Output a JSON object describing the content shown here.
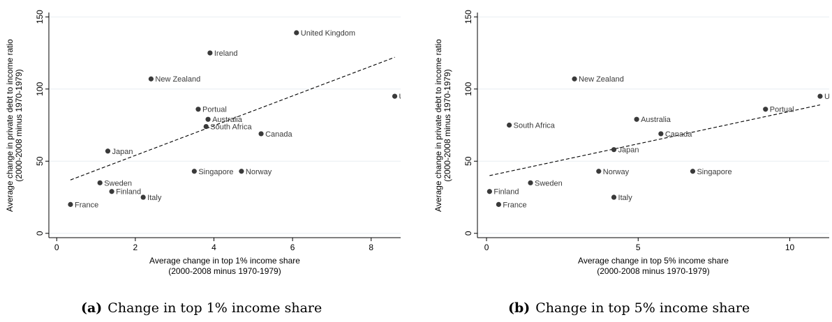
{
  "chart_data": [
    {
      "type": "scatter",
      "caption_tag": "(a)",
      "caption_text": "Change in top 1% income share",
      "xlabel": "Average change in top 1% income share",
      "xlabel2": "(2000-2008 minus 1970-1979)",
      "ylabel": "Average change in private debt to income ratio",
      "ylabel2": "(2000-2008 minus 1970-1979)",
      "xlim": [
        -0.2,
        8.75
      ],
      "ylim": [
        -3,
        153
      ],
      "xticks": [
        0,
        2,
        4,
        6,
        8
      ],
      "yticks": [
        0,
        50,
        100,
        150
      ],
      "grid": "horizontal",
      "fit_line": {
        "x": [
          0.35,
          8.6
        ],
        "y": [
          37,
          122
        ]
      },
      "points": [
        {
          "label": "United Kingdom",
          "x": 6.1,
          "y": 139
        },
        {
          "label": "Ireland",
          "x": 3.9,
          "y": 125
        },
        {
          "label": "New Zealand",
          "x": 2.4,
          "y": 107
        },
        {
          "label": "Unit",
          "x": 8.6,
          "y": 95
        },
        {
          "label": "Portual",
          "x": 3.6,
          "y": 86
        },
        {
          "label": "Australia",
          "x": 3.85,
          "y": 79
        },
        {
          "label": "South Africa",
          "x": 3.8,
          "y": 74
        },
        {
          "label": "Canada",
          "x": 5.2,
          "y": 69
        },
        {
          "label": "Japan",
          "x": 1.3,
          "y": 57
        },
        {
          "label": "Singapore",
          "x": 3.5,
          "y": 43
        },
        {
          "label": "Norway",
          "x": 4.7,
          "y": 43
        },
        {
          "label": "Sweden",
          "x": 1.1,
          "y": 35
        },
        {
          "label": "Finland",
          "x": 1.4,
          "y": 29
        },
        {
          "label": "Italy",
          "x": 2.2,
          "y": 25
        },
        {
          "label": "France",
          "x": 0.35,
          "y": 20
        }
      ]
    },
    {
      "type": "scatter",
      "caption_tag": "(b)",
      "caption_text": "Change in top 5% income share",
      "xlabel": "Average change in top 5% income share",
      "xlabel2": "(2000-2008 minus 1970-1979)",
      "ylabel": "Average change in private debt to income ratio",
      "ylabel2": "(2000-2008 minus 1970-1979)",
      "xlim": [
        -0.3,
        11.3
      ],
      "ylim": [
        -3,
        153
      ],
      "xticks": [
        0,
        5,
        10
      ],
      "yticks": [
        0,
        50,
        100,
        150
      ],
      "grid": "horizontal",
      "fit_line": {
        "x": [
          0.1,
          11.0
        ],
        "y": [
          40,
          89
        ]
      },
      "points": [
        {
          "label": "New Zealand",
          "x": 2.9,
          "y": 107
        },
        {
          "label": "Unit",
          "x": 11.0,
          "y": 95
        },
        {
          "label": "Portual",
          "x": 9.2,
          "y": 86
        },
        {
          "label": "Australia",
          "x": 4.95,
          "y": 79
        },
        {
          "label": "South Africa",
          "x": 0.75,
          "y": 75
        },
        {
          "label": "Canada",
          "x": 5.75,
          "y": 69
        },
        {
          "label": "Japan",
          "x": 4.2,
          "y": 58
        },
        {
          "label": "Norway",
          "x": 3.7,
          "y": 43
        },
        {
          "label": "Singapore",
          "x": 6.8,
          "y": 43
        },
        {
          "label": "Sweden",
          "x": 1.45,
          "y": 35
        },
        {
          "label": "Finland",
          "x": 0.1,
          "y": 29
        },
        {
          "label": "Italy",
          "x": 4.2,
          "y": 25
        },
        {
          "label": "France",
          "x": 0.4,
          "y": 20
        }
      ]
    }
  ]
}
